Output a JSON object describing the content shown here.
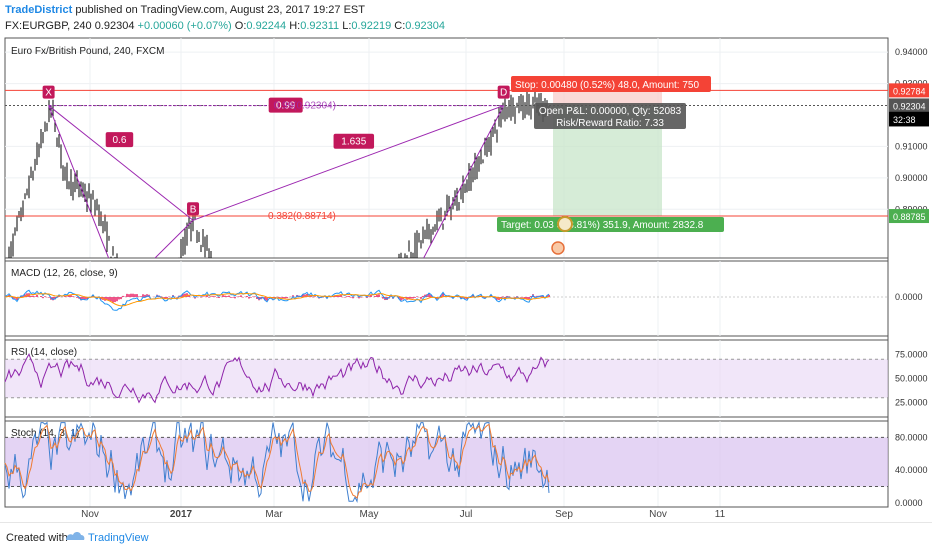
{
  "header": {
    "author": "TradeDistrict",
    "published": "published on TradingView.com, August 23, 2017 19:27 EST",
    "symbol_line": {
      "symbol": "FX:EURGBP, 240",
      "last": "0.92304",
      "change": "+0.00060 (+0.07%)",
      "o_label": "O:",
      "o": "0.92244",
      "h_label": "H:",
      "h": "0.92311",
      "l_label": "L:",
      "l": "0.92219",
      "c_label": "C:",
      "c": "0.92304"
    }
  },
  "footer": {
    "created_with": "Created with",
    "brand": "TradingView"
  },
  "colors": {
    "up": "#26a69a",
    "down": "#ef5350",
    "candle": "#000000",
    "pattern": "#c2185b",
    "pattern_line": "#9c27b0",
    "stop": "#f44336",
    "target": "#4caf50",
    "rsi_line": "#8e24aa",
    "rsi_band": "#e8d6f5",
    "macd_line": "#2196f3",
    "signal_line": "#ff9800",
    "histogram": "#e91e63",
    "stoch_k": "#3f7fcf",
    "stoch_d": "#ef7b33",
    "stoch_band": "#d9c2f0"
  },
  "chart_data": [
    {
      "type": "line",
      "name": "price",
      "title": "Euro Fx/British Pound, 240, FXCM",
      "ylim": [
        0.8745,
        0.9445
      ],
      "yticks": [
        {
          "value": 0.94,
          "label": "0.94000"
        },
        {
          "value": 0.93,
          "label": "0.93000"
        },
        {
          "value": 0.91,
          "label": "0.91000"
        },
        {
          "value": 0.9,
          "label": "0.90000"
        },
        {
          "value": 0.89,
          "label": "0.89000"
        }
      ],
      "price_tags": [
        {
          "value": 0.92784,
          "label": "0.92784",
          "color": "#f44336"
        },
        {
          "value": 0.92304,
          "label": "0.92304",
          "color": "#555555"
        },
        {
          "value": 0.92304,
          "label": "0.92304",
          "color": "#000000",
          "offset": 1
        },
        {
          "value": 0.9188,
          "label": "32:38",
          "color": "#000000"
        },
        {
          "value": 0.88785,
          "label": "0.88785",
          "color": "#4caf50"
        }
      ],
      "xticks": [
        "Nov",
        "2017",
        "Mar",
        "May",
        "Jul",
        "Sep",
        "Nov",
        "11"
      ],
      "xtick_bold": [
        false,
        true,
        false,
        false,
        false,
        false,
        false,
        false
      ],
      "pattern": {
        "points": [
          {
            "label": "X",
            "t": 0.08,
            "value": 0.923
          },
          {
            "label": "B",
            "t": 0.345,
            "value": 0.8865
          },
          {
            "label": "D",
            "t": 0.915,
            "value": 0.923
          }
        ],
        "ratios": [
          {
            "label": "0.6",
            "t": 0.21,
            "value": 0.912
          },
          {
            "label": "1.635",
            "t": 0.64,
            "value": 0.9115
          },
          {
            "label": "0.99",
            "t": 0.515,
            "value": 0.923
          }
        ],
        "fib_level": {
          "label": "0.99(0.92304)"
        },
        "fib_382": {
          "label": "0.382(0.88714)",
          "value": 0.88714
        }
      },
      "position": {
        "stop_label": "Stop: 0.00480 (0.52%) 48.0, Amount: 750",
        "target_label": "Target: 0.03 3 (3.81%) 351.9, Amount: 2832.8",
        "pnl_label": "Open P&L: 0.00000, Qty: 52083",
        "rr_label": "Risk/Reward Ratio: 7.33",
        "entry": 0.92304,
        "stop": 0.92784,
        "target": 0.88785
      }
    },
    {
      "type": "line",
      "name": "macd",
      "title": "MACD (12, 26, close, 9)",
      "yticks": [
        {
          "value": 0,
          "label": "0.0000"
        }
      ]
    },
    {
      "type": "line",
      "name": "rsi",
      "title": "RSI (14, close)",
      "ylim": [
        10,
        90
      ],
      "yticks": [
        {
          "value": 75,
          "label": "75.0000"
        },
        {
          "value": 50,
          "label": "50.0000"
        },
        {
          "value": 25,
          "label": "25.0000"
        }
      ],
      "band": [
        30,
        70
      ]
    },
    {
      "type": "line",
      "name": "stoch",
      "title": "Stoch (14, 3, 1)",
      "ylim": [
        -5,
        100
      ],
      "yticks": [
        {
          "value": 80,
          "label": "80.0000"
        },
        {
          "value": 40,
          "label": "40.0000"
        },
        {
          "value": 0,
          "label": "0.0000"
        }
      ],
      "band": [
        20,
        80
      ]
    }
  ]
}
